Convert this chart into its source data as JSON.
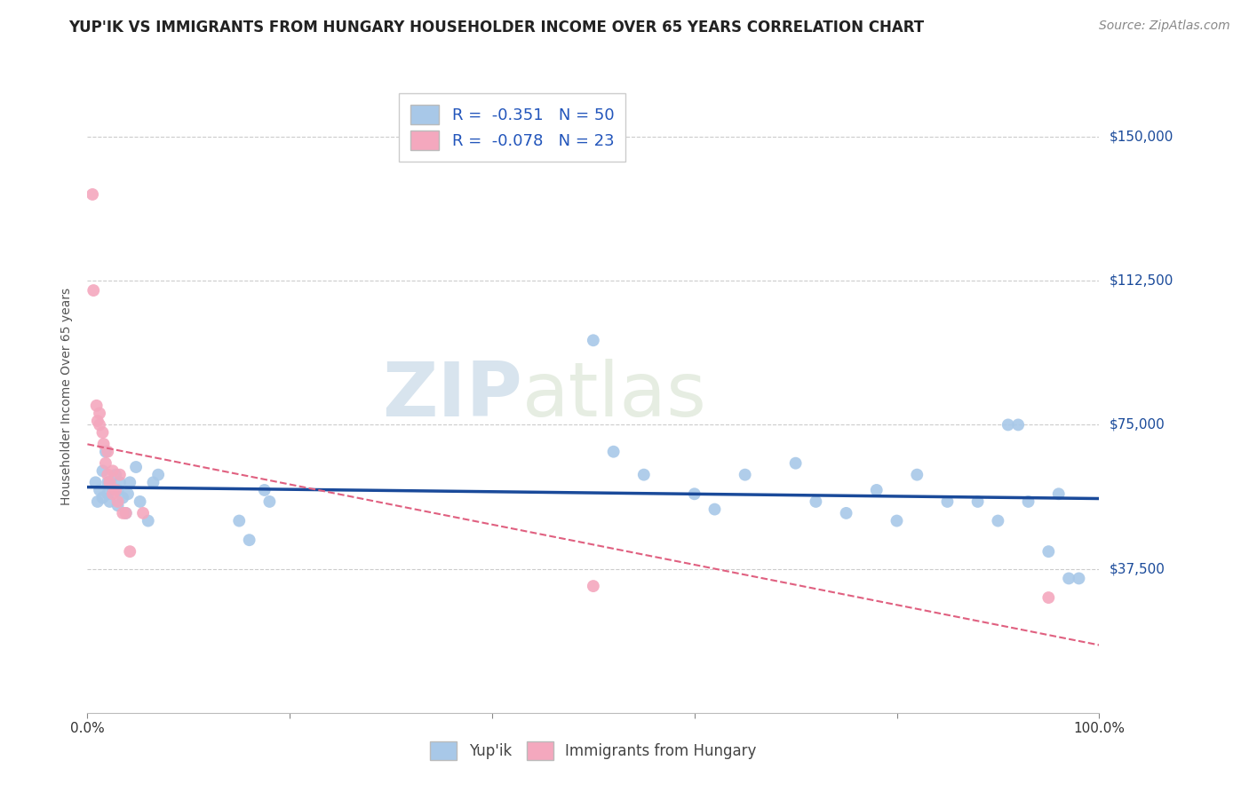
{
  "title": "YUP'IK VS IMMIGRANTS FROM HUNGARY HOUSEHOLDER INCOME OVER 65 YEARS CORRELATION CHART",
  "source": "Source: ZipAtlas.com",
  "ylabel": "Householder Income Over 65 years",
  "ytick_labels": [
    "$37,500",
    "$75,000",
    "$112,500",
    "$150,000"
  ],
  "ytick_values": [
    37500,
    75000,
    112500,
    150000
  ],
  "ylim": [
    0,
    165000
  ],
  "xlim": [
    0.0,
    1.0
  ],
  "watermark_zip": "ZIP",
  "watermark_atlas": "atlas",
  "blue_color": "#a8c8e8",
  "pink_color": "#f4a8be",
  "blue_line_color": "#1a4a9a",
  "pink_line_color": "#e06080",
  "legend_text_color": "#2255bb",
  "blue_scatter_x": [
    0.008,
    0.01,
    0.012,
    0.015,
    0.015,
    0.018,
    0.02,
    0.02,
    0.022,
    0.022,
    0.025,
    0.028,
    0.03,
    0.03,
    0.032,
    0.035,
    0.038,
    0.04,
    0.042,
    0.048,
    0.052,
    0.06,
    0.065,
    0.07,
    0.15,
    0.16,
    0.175,
    0.18,
    0.5,
    0.52,
    0.55,
    0.6,
    0.62,
    0.65,
    0.7,
    0.72,
    0.75,
    0.78,
    0.8,
    0.82,
    0.85,
    0.88,
    0.9,
    0.91,
    0.92,
    0.93,
    0.95,
    0.96,
    0.97,
    0.98
  ],
  "blue_scatter_y": [
    60000,
    55000,
    58000,
    63000,
    56000,
    68000,
    60000,
    57000,
    60000,
    55000,
    58000,
    62000,
    58000,
    54000,
    60000,
    56000,
    52000,
    57000,
    60000,
    64000,
    55000,
    50000,
    60000,
    62000,
    50000,
    45000,
    58000,
    55000,
    97000,
    68000,
    62000,
    57000,
    53000,
    62000,
    65000,
    55000,
    52000,
    58000,
    50000,
    62000,
    55000,
    55000,
    50000,
    75000,
    75000,
    55000,
    42000,
    57000,
    35000,
    35000
  ],
  "pink_scatter_x": [
    0.005,
    0.006,
    0.009,
    0.01,
    0.012,
    0.012,
    0.015,
    0.016,
    0.018,
    0.02,
    0.02,
    0.022,
    0.025,
    0.025,
    0.028,
    0.03,
    0.032,
    0.035,
    0.038,
    0.042,
    0.055,
    0.5,
    0.95
  ],
  "pink_scatter_y": [
    135000,
    110000,
    80000,
    76000,
    78000,
    75000,
    73000,
    70000,
    65000,
    68000,
    62000,
    60000,
    63000,
    57000,
    58000,
    55000,
    62000,
    52000,
    52000,
    42000,
    52000,
    33000,
    30000
  ],
  "marker_size": 100,
  "title_fontsize": 12,
  "axis_label_fontsize": 10,
  "tick_fontsize": 11,
  "legend_fontsize": 13,
  "source_fontsize": 10,
  "background_color": "#ffffff",
  "grid_color": "#cccccc"
}
